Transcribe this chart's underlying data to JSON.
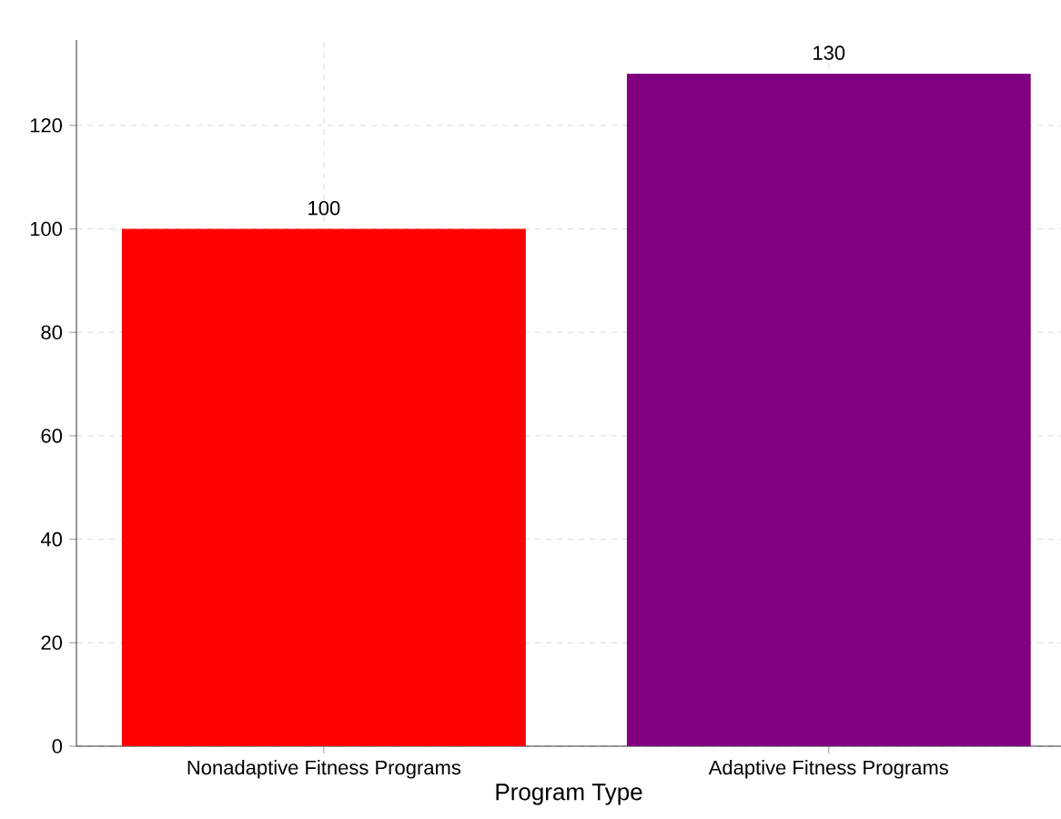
{
  "chart_data": {
    "type": "bar",
    "xlabel": "Program Type",
    "categories": [
      "Nonadaptive Fitness Programs",
      "Adaptive Fitness Programs"
    ],
    "values": [
      100,
      130
    ],
    "colors": [
      "#ff0000",
      "#800080"
    ],
    "ylim": [
      0,
      136.5
    ],
    "yticks": [
      0,
      20,
      40,
      60,
      80,
      100,
      120
    ],
    "grid": true,
    "data_labels": true
  }
}
